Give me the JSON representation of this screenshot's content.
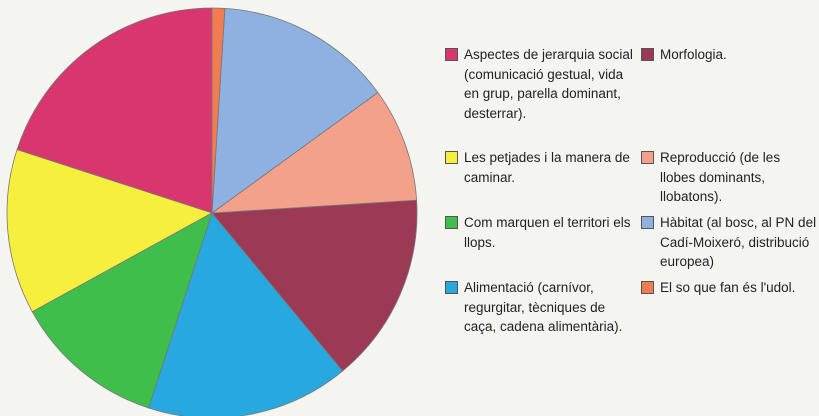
{
  "chart_data": {
    "type": "pie",
    "direction": "counterclockwise",
    "series": [
      {
        "name": "Aspectes de jerarquia social (comunicació gestual, vida en grup, parella dominant, desterrar).",
        "color": "#d8366f",
        "values": [
          20
        ]
      },
      {
        "name": "Les petjades i la manera de caminar.",
        "color": "#f6ef3e",
        "values": [
          13
        ]
      },
      {
        "name": "Com marquen el territori els llops.",
        "color": "#40be4c",
        "values": [
          12
        ]
      },
      {
        "name": "Alimentació (carnívor, regurgitar, tècniques de caça, cadena alimentària).",
        "color": "#27a9df",
        "values": [
          16
        ]
      },
      {
        "name": "Morfologia.",
        "color": "#9c3a56",
        "values": [
          15
        ]
      },
      {
        "name": "Reproducció (de les llobes dominants, llobatons).",
        "color": "#f3a18b",
        "values": [
          9
        ]
      },
      {
        "name": "Hàbitat (al bosc, al PN del Cadí-Moixeró, distribució europea)",
        "color": "#8fb1e1",
        "values": [
          14
        ]
      },
      {
        "name": "El so que fan és l'udol.",
        "color": "#f07c4f",
        "values": [
          1
        ]
      }
    ]
  }
}
